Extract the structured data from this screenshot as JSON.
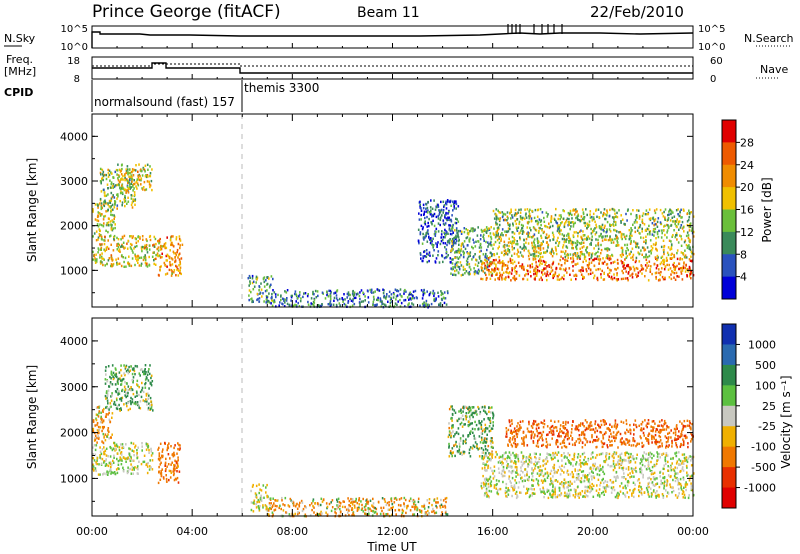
{
  "header": {
    "station": "Prince George (fitACF)",
    "beam": "Beam 11",
    "date": "22/Feb/2010"
  },
  "top_panels": {
    "nsky_label": "N.Sky",
    "nsky_ticks": [
      "10^5",
      "10^0"
    ],
    "nsearch_label": "N.Search",
    "nsearch_ticks": [
      "10^5",
      "10^0"
    ],
    "freq_label": "Freq.",
    "freq_unit": "[MHz]",
    "freq_ticks": [
      "18",
      "8"
    ],
    "nave_label": "Nave",
    "nave_ticks": [
      "60",
      "0"
    ],
    "cpid_label": "CPID",
    "cpid_segments": [
      "normalsound (fast) 157",
      "themis 3300"
    ]
  },
  "x_axis": {
    "label": "Time UT",
    "ticks": [
      "00:00",
      "04:00",
      "08:00",
      "12:00",
      "16:00",
      "20:00",
      "00:00"
    ]
  },
  "chart_data": [
    {
      "type": "heatmap",
      "ylabel": "Slant Range [km]",
      "y_ticks": [
        "1000",
        "2000",
        "3000",
        "4000"
      ],
      "ylim": [
        180,
        4500
      ],
      "xlim": [
        0,
        24
      ],
      "colorbar_label": "Power [dB]",
      "colorbar_ticks": [
        "4",
        "8",
        "12",
        "16",
        "20",
        "24",
        "28"
      ],
      "colorbar_colors": [
        "#0000d8",
        "#2a52be",
        "#3a8a5a",
        "#6abf3a",
        "#f0c000",
        "#f08c00",
        "#ee5a00",
        "#e00000"
      ],
      "echo_regions": [
        {
          "t": [
            0.0,
            0.9
          ],
          "range": [
            1800,
            2600
          ],
          "power": 16
        },
        {
          "t": [
            0.3,
            1.7
          ],
          "range": [
            2400,
            3300
          ],
          "power": 14
        },
        {
          "t": [
            1.0,
            2.4
          ],
          "range": [
            2800,
            3400
          ],
          "power": 18
        },
        {
          "t": [
            0.0,
            2.6
          ],
          "range": [
            1100,
            1800
          ],
          "power": 18
        },
        {
          "t": [
            2.6,
            3.6
          ],
          "range": [
            900,
            1800
          ],
          "power": 22
        },
        {
          "t": [
            6.2,
            7.2
          ],
          "range": [
            300,
            900
          ],
          "power": 10
        },
        {
          "t": [
            7.0,
            14.2
          ],
          "range": [
            200,
            600
          ],
          "power": 8
        },
        {
          "t": [
            13.0,
            14.6
          ],
          "range": [
            1200,
            2600
          ],
          "power": 6
        },
        {
          "t": [
            14.3,
            16.0
          ],
          "range": [
            900,
            2000
          ],
          "power": 12
        },
        {
          "t": [
            15.5,
            24.0
          ],
          "range": [
            800,
            1300
          ],
          "power": 24
        },
        {
          "t": [
            16.0,
            24.0
          ],
          "range": [
            1300,
            1800
          ],
          "power": 16
        },
        {
          "t": [
            16.0,
            24.0
          ],
          "range": [
            1800,
            2400
          ],
          "power": 14
        }
      ]
    },
    {
      "type": "heatmap",
      "ylabel": "Slant Range [km]",
      "y_ticks": [
        "1000",
        "2000",
        "3000",
        "4000"
      ],
      "ylim": [
        180,
        4500
      ],
      "xlim": [
        0,
        24
      ],
      "colorbar_label": "Velocity [m s⁻¹]",
      "colorbar_ticks": [
        "1000",
        "500",
        "100",
        "25",
        "-25",
        "-100",
        "-500",
        "-1000"
      ],
      "colorbar_colors": [
        "#1030b0",
        "#2a6ab0",
        "#2e8a4a",
        "#5cc040",
        "#c8c8c0",
        "#f0b000",
        "#f07800",
        "#e83000",
        "#e00000"
      ],
      "echo_regions": [
        {
          "t": [
            0.0,
            2.4
          ],
          "range": [
            1100,
            1800
          ],
          "velocity": 0
        },
        {
          "t": [
            0.0,
            0.8
          ],
          "range": [
            1800,
            2600
          ],
          "velocity": -150
        },
        {
          "t": [
            0.5,
            2.4
          ],
          "range": [
            2500,
            3500
          ],
          "velocity": 150
        },
        {
          "t": [
            2.6,
            3.5
          ],
          "range": [
            900,
            1800
          ],
          "velocity": -300
        },
        {
          "t": [
            6.3,
            7.0
          ],
          "range": [
            300,
            900
          ],
          "velocity": 0
        },
        {
          "t": [
            7.0,
            14.2
          ],
          "range": [
            200,
            600
          ],
          "velocity": -120
        },
        {
          "t": [
            14.2,
            16.0
          ],
          "range": [
            1500,
            2600
          ],
          "velocity": 120
        },
        {
          "t": [
            15.5,
            24.0
          ],
          "range": [
            600,
            1600
          ],
          "velocity": 0
        },
        {
          "t": [
            16.5,
            24.0
          ],
          "range": [
            1700,
            2300
          ],
          "velocity": -400
        }
      ]
    }
  ]
}
